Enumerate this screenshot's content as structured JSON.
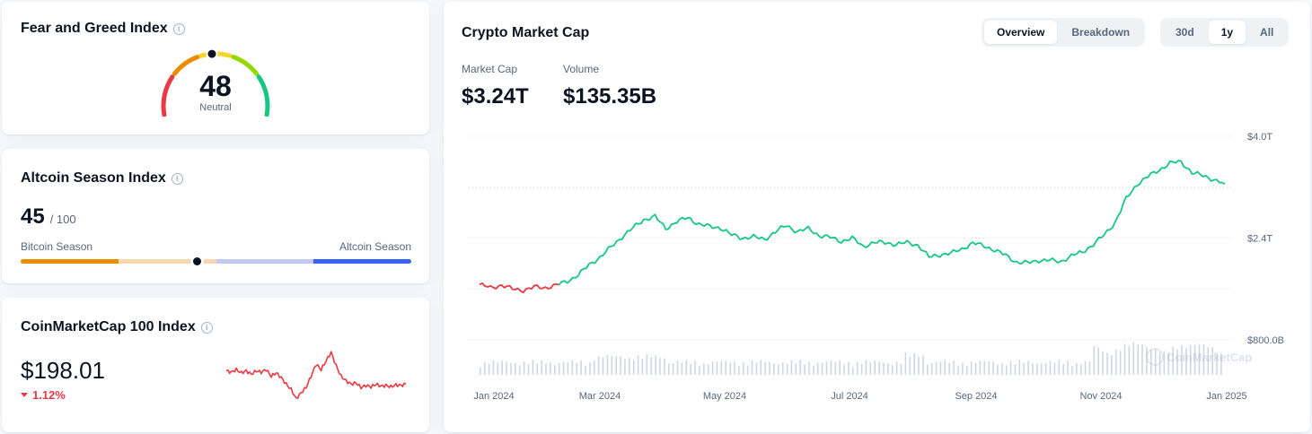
{
  "fear_greed": {
    "title": "Fear and Greed Index",
    "value": "48",
    "label": "Neutral",
    "colors": [
      "#ea3943",
      "#ea8c00",
      "#f3d42f",
      "#93d900",
      "#16c784"
    ]
  },
  "altcoin_season": {
    "title": "Altcoin Season Index",
    "value": "45",
    "max": "/ 100",
    "left_label": "Bitcoin Season",
    "right_label": "Altcoin Season",
    "level_percent": 45,
    "colors": [
      "#ea8c00",
      "#f6d7b0",
      "#c1c8f4",
      "#3861fb"
    ]
  },
  "cmc100": {
    "title": "CoinMarketCap 100 Index",
    "value": "$198.01",
    "change": "1.12%",
    "change_direction": "down",
    "change_color": "#ea3943"
  },
  "market_chart": {
    "title": "Crypto Market Cap",
    "tabs": [
      {
        "label": "Overview",
        "active": true
      },
      {
        "label": "Breakdown",
        "active": false
      }
    ],
    "ranges": [
      {
        "label": "30d",
        "active": false
      },
      {
        "label": "1y",
        "active": true
      },
      {
        "label": "All",
        "active": false
      }
    ],
    "stats": {
      "market_cap_label": "Market Cap",
      "market_cap_value": "$3.24T",
      "volume_label": "Volume",
      "volume_value": "$135.35B"
    },
    "watermark": "CoinMarketCap"
  },
  "chart_data": [
    {
      "type": "line",
      "title": "Crypto Market Cap",
      "x_tick_labels": [
        "Jan 2024",
        "Mar 2024",
        "May 2024",
        "Jul 2024",
        "Sep 2024",
        "Nov 2024",
        "Jan 2025"
      ],
      "y_tick_labels": [
        "$4.0T",
        "$2.4T",
        "$800.0B"
      ],
      "ylim_trillions": [
        0.8,
        4.0
      ],
      "series": [
        {
          "values_trillions": [
            1.67,
            1.62,
            1.66,
            1.6,
            1.58,
            1.63,
            1.62,
            1.66,
            1.72,
            1.82,
            1.98,
            2.1,
            2.26,
            2.42,
            2.56,
            2.69,
            2.74,
            2.55,
            2.66,
            2.72,
            2.62,
            2.58,
            2.56,
            2.45,
            2.4,
            2.42,
            2.38,
            2.5,
            2.6,
            2.5,
            2.55,
            2.44,
            2.41,
            2.35,
            2.4,
            2.27,
            2.33,
            2.33,
            2.3,
            2.33,
            2.29,
            2.1,
            2.14,
            2.16,
            2.23,
            2.32,
            2.28,
            2.21,
            2.13,
            2.02,
            2.01,
            2.05,
            2.05,
            2.03,
            2.12,
            2.18,
            2.3,
            2.45,
            2.65,
            3.02,
            3.25,
            3.37,
            3.47,
            3.58,
            3.6,
            3.43,
            3.38,
            3.32,
            3.25
          ],
          "line_color": "#16c784",
          "early_segment_color": "#ea3943"
        }
      ],
      "volume_bars": "shown",
      "grid": "dotted horizontal"
    },
    {
      "type": "line",
      "title": "CoinMarketCap 100 Index sparkline",
      "values": [
        0.6,
        0.58,
        0.62,
        0.57,
        0.6,
        0.55,
        0.6,
        0.58,
        0.62,
        0.52,
        0.57,
        0.5,
        0.4,
        0.32,
        0.18,
        0.27,
        0.35,
        0.52,
        0.7,
        0.62,
        0.75,
        0.88,
        0.68,
        0.52,
        0.45,
        0.4,
        0.42,
        0.35,
        0.38,
        0.36,
        0.4,
        0.37,
        0.38,
        0.36,
        0.39,
        0.38,
        0.4
      ],
      "line_color": "#ea3943"
    }
  ]
}
